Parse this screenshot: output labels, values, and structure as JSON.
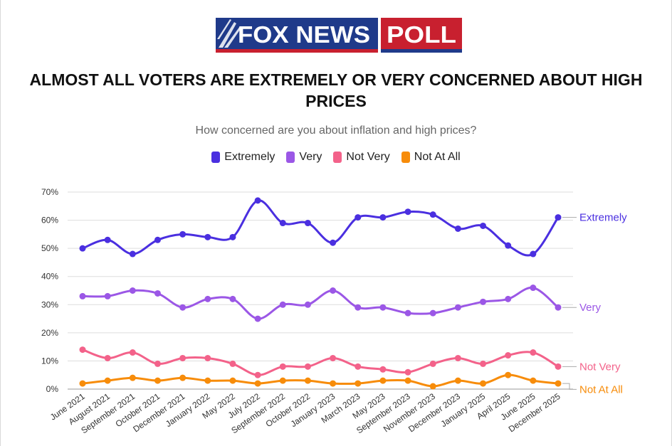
{
  "logo": {
    "main_text": "FOX NEWS",
    "poll_text": "POLL"
  },
  "colors": {
    "extremely": "#4a2fe0",
    "very": "#9b57e6",
    "not_very": "#f3628a",
    "not_at_all": "#f78c0a",
    "logo_blue": "#1f3a8a",
    "logo_red": "#c8202f"
  },
  "chart_data": {
    "type": "line",
    "title": "ALMOST ALL VOTERS ARE EXTREMELY OR VERY CONCERNED ABOUT HIGH PRICES",
    "subtitle": "How concerned are you about inflation and high prices?",
    "x": [
      "June 2021",
      "August 2021",
      "September 2021",
      "October 2021",
      "December 2021",
      "January 2022",
      "May 2022",
      "July 2022",
      "September 2022",
      "October 2022",
      "January 2023",
      "March 2023",
      "May 2023",
      "September 2023",
      "November 2023",
      "December 2023",
      "January 2025",
      "April 2025",
      "June 2025",
      "December 2025"
    ],
    "y_ticks": [
      "0%",
      "10%",
      "20%",
      "30%",
      "40%",
      "50%",
      "60%",
      "70%"
    ],
    "ylim": [
      0,
      70
    ],
    "legend_position": "top",
    "series": [
      {
        "key": "extremely",
        "name": "Extremely",
        "end_label": "Extremely",
        "values": [
          50,
          53,
          48,
          53,
          55,
          54,
          54,
          67,
          59,
          59,
          52,
          61,
          61,
          63,
          62,
          57,
          58,
          51,
          48,
          61
        ]
      },
      {
        "key": "very",
        "name": "Very",
        "end_label": "Very",
        "values": [
          33,
          33,
          35,
          34,
          29,
          32,
          32,
          25,
          30,
          30,
          35,
          29,
          29,
          27,
          27,
          29,
          31,
          32,
          36,
          29
        ]
      },
      {
        "key": "not_very",
        "name": "Not Very",
        "end_label": "Not Very",
        "values": [
          14,
          11,
          13,
          9,
          11,
          11,
          9,
          5,
          8,
          8,
          11,
          8,
          7,
          6,
          9,
          11,
          9,
          12,
          13,
          8
        ]
      },
      {
        "key": "not_at_all",
        "name": "Not At All",
        "end_label": "Not At All",
        "values": [
          2,
          3,
          4,
          3,
          4,
          3,
          3,
          2,
          3,
          3,
          2,
          2,
          3,
          3,
          1,
          3,
          2,
          5,
          3,
          2
        ]
      }
    ]
  }
}
